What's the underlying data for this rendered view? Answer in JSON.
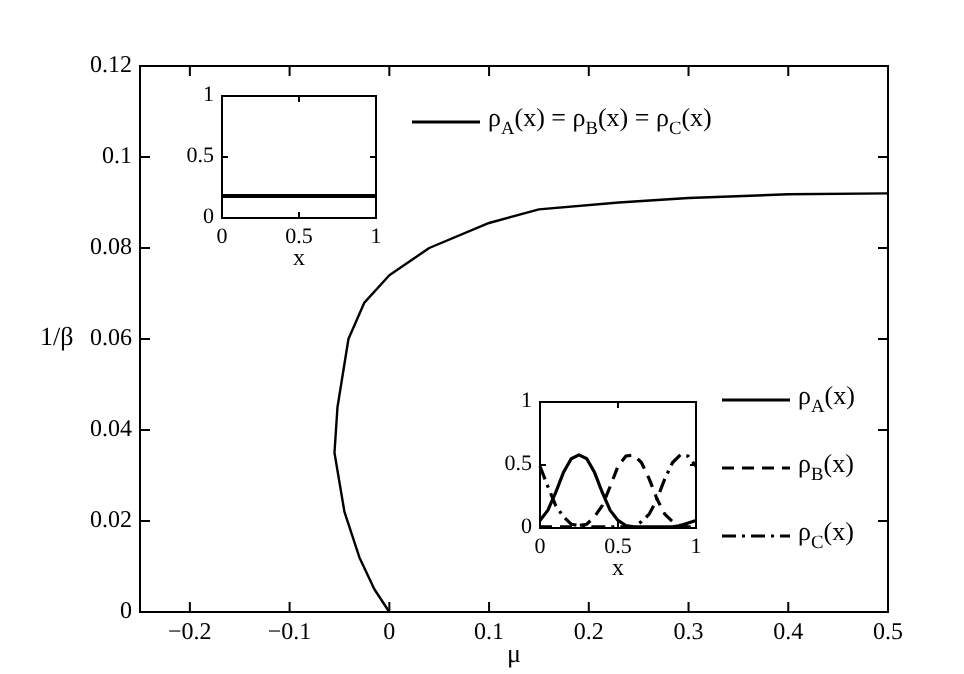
{
  "chart_data": [
    {
      "type": "line",
      "xlabel": "μ",
      "ylabel": "1/β",
      "xlim": [
        -0.25,
        0.5
      ],
      "ylim": [
        0,
        0.12
      ],
      "xticks": [
        {
          "value": -0.2,
          "label": "−0.2"
        },
        {
          "value": -0.1,
          "label": "−0.1"
        },
        0,
        0.1,
        0.2,
        0.3,
        0.4,
        0.5
      ],
      "yticks": [
        0,
        0.02,
        0.04,
        0.06,
        0.08,
        0.1,
        0.12
      ],
      "grid": false,
      "legend": false,
      "series": [
        {
          "color": "#000000",
          "x": [
            0,
            -0.015,
            -0.03,
            -0.045,
            -0.055,
            -0.052,
            -0.041,
            -0.025,
            0,
            0.04,
            0.1,
            0.15,
            0.23,
            0.3,
            0.4,
            0.5
          ],
          "values": [
            0,
            0.005,
            0.012,
            0.022,
            0.035,
            0.045,
            0.06,
            0.068,
            0.074,
            0.08,
            0.0855,
            0.0885,
            0.09,
            0.091,
            0.0918,
            0.092
          ]
        }
      ]
    },
    {
      "type": "line",
      "xlabel": "x",
      "xlim": [
        0,
        1
      ],
      "ylim": [
        0,
        1
      ],
      "xticks": [
        0,
        0.5,
        1
      ],
      "yticks": [
        0,
        0.5,
        1
      ],
      "grid": false,
      "legend": "right",
      "series": [
        {
          "name": "ρ$_{A}$(x) = ρ$_{B}$(x) = ρ$_{C}$(x)",
          "color": "#000000",
          "line_style": "solid",
          "x": [
            0,
            1
          ],
          "values": [
            0.18,
            0.18
          ]
        }
      ]
    },
    {
      "type": "line",
      "xlabel": "x",
      "xlim": [
        0,
        1
      ],
      "ylim": [
        0,
        1
      ],
      "xticks": [
        0,
        0.5,
        1
      ],
      "yticks": [
        0,
        0.5,
        1
      ],
      "grid": false,
      "legend": "right",
      "x": [
        0,
        0.05,
        0.1,
        0.15,
        0.2,
        0.25,
        0.3,
        0.35,
        0.4,
        0.45,
        0.5,
        0.55,
        0.6,
        0.65,
        0.7,
        0.75,
        0.8,
        0.85,
        0.9,
        0.95,
        1
      ],
      "series": [
        {
          "name": "ρ$_{A}$(x)",
          "color": "#000000",
          "line_style": "solid",
          "values": [
            0.06,
            0.14,
            0.28,
            0.44,
            0.55,
            0.58,
            0.55,
            0.44,
            0.28,
            0.14,
            0.06,
            0.02,
            0.01,
            0.01,
            0.01,
            0.01,
            0.01,
            0.01,
            0.02,
            0.04,
            0.06
          ]
        },
        {
          "name": "ρ$_{B}$(x)",
          "color": "#000000",
          "line_style": "dashed",
          "values": [
            0.01,
            0.01,
            0.01,
            0.01,
            0.01,
            0.02,
            0.03,
            0.09,
            0.18,
            0.33,
            0.49,
            0.57,
            0.58,
            0.52,
            0.39,
            0.23,
            0.11,
            0.05,
            0.02,
            0.01,
            0.01
          ]
        },
        {
          "name": "ρ$_{C}$(x)",
          "color": "#000000",
          "line_style": "dashdot",
          "values": [
            0.49,
            0.33,
            0.18,
            0.09,
            0.03,
            0.02,
            0.01,
            0.01,
            0.01,
            0.01,
            0.01,
            0.01,
            0.01,
            0.05,
            0.11,
            0.23,
            0.39,
            0.52,
            0.58,
            0.57,
            0.49
          ]
        }
      ]
    }
  ]
}
